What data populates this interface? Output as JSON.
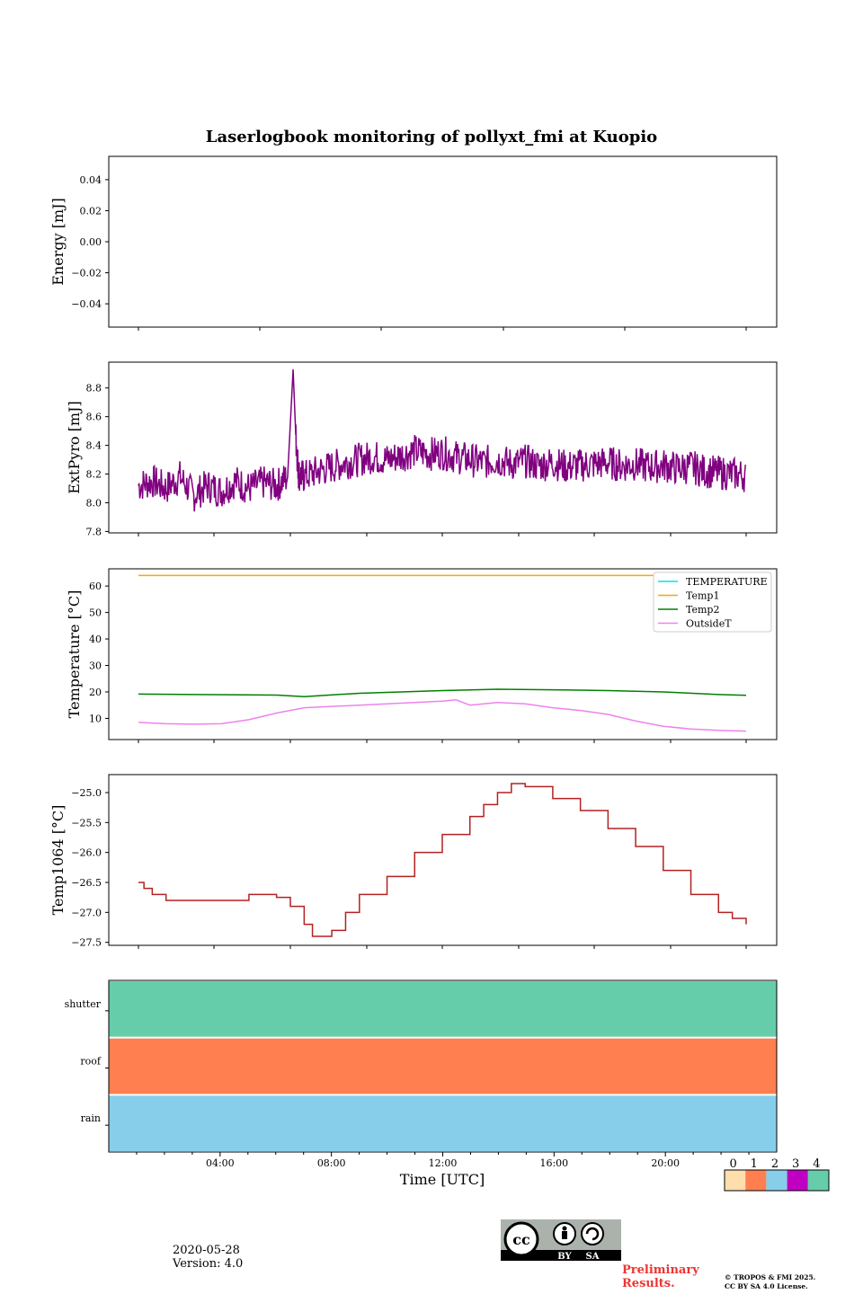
{
  "chart_data": {
    "title": "Laserlogbook monitoring of pollyxt_fmi at Kuopio",
    "xlabel": "Time [UTC]",
    "x_ticks": [
      "04:00",
      "08:00",
      "12:00",
      "16:00",
      "20:00"
    ],
    "x_range_hours": [
      0,
      24
    ],
    "panels": [
      {
        "type": "line",
        "name": "energy",
        "ylabel": "Energy [mJ]",
        "ylim": [
          -0.055,
          0.055
        ],
        "yticks": [
          "0.04",
          "0.02",
          "0.00",
          "−0.02",
          "−0.04"
        ],
        "ytick_values": [
          0.04,
          0.02,
          0.0,
          -0.02,
          -0.04
        ],
        "series": []
      },
      {
        "type": "line",
        "name": "extpyro",
        "ylabel": "ExtPyro [mJ]",
        "ylim": [
          7.79,
          8.98
        ],
        "yticks": [
          "8.8",
          "8.6",
          "8.4",
          "8.2",
          "8.0",
          "7.8"
        ],
        "ytick_values": [
          8.8,
          8.6,
          8.4,
          8.2,
          8.0,
          7.8
        ],
        "series": [
          {
            "name": "ExtPyro",
            "color": "#800080",
            "x": [
              1.0,
              1.5,
              2.0,
              2.5,
              3.0,
              3.5,
              4.0,
              4.5,
              5.0,
              5.5,
              6.0,
              6.4,
              6.6,
              6.7,
              6.8,
              7.0,
              7.5,
              8.0,
              8.5,
              9.0,
              9.5,
              10.0,
              10.5,
              11.0,
              11.5,
              12.0,
              12.5,
              13.0,
              13.5,
              14.0,
              14.5,
              15.0,
              15.5,
              16.0,
              16.5,
              17.0,
              17.5,
              18.0,
              18.5,
              19.0,
              19.5,
              20.0,
              20.5,
              21.0,
              21.5,
              22.0,
              22.5,
              23.0
            ],
            "y": [
              8.12,
              8.15,
              8.1,
              8.18,
              8.05,
              8.12,
              8.08,
              8.15,
              8.1,
              8.14,
              8.12,
              8.18,
              8.93,
              8.45,
              8.2,
              8.18,
              8.22,
              8.25,
              8.28,
              8.3,
              8.32,
              8.3,
              8.33,
              8.36,
              8.34,
              8.35,
              8.32,
              8.3,
              8.28,
              8.3,
              8.27,
              8.29,
              8.26,
              8.28,
              8.25,
              8.26,
              8.27,
              8.28,
              8.26,
              8.27,
              8.25,
              8.26,
              8.24,
              8.25,
              8.22,
              8.21,
              8.2,
              8.19
            ],
            "noise": 0.12
          }
        ]
      },
      {
        "type": "line",
        "name": "temperature",
        "ylabel": "Temperature [°C]",
        "ylim": [
          2,
          66.5
        ],
        "yticks": [
          "60",
          "50",
          "40",
          "30",
          "20",
          "10"
        ],
        "ytick_values": [
          60,
          50,
          40,
          30,
          20,
          10
        ],
        "legend": "top-right",
        "series": [
          {
            "name": "TEMPERATURE",
            "color": "#00e5e5",
            "x": [],
            "y": []
          },
          {
            "name": "Temp1",
            "color": "#ffa500",
            "x": [
              1,
              23
            ],
            "y": [
              64,
              64
            ]
          },
          {
            "name": "Temp2",
            "color": "#008000",
            "x": [
              1,
              3,
              6,
              7,
              9,
              12,
              14,
              16,
              18,
              20,
              22,
              23
            ],
            "y": [
              19.2,
              19.0,
              18.8,
              18.2,
              19.5,
              20.5,
              21.0,
              20.8,
              20.5,
              20.0,
              19.0,
              18.7
            ]
          },
          {
            "name": "OutsideT",
            "color": "#ee82ee",
            "x": [
              1,
              2,
              3,
              4,
              5,
              6,
              7,
              8,
              9,
              10,
              11,
              12,
              12.5,
              13,
              14,
              15,
              16,
              17,
              18,
              19,
              20,
              21,
              22,
              23
            ],
            "y": [
              8.5,
              8.0,
              7.8,
              8.0,
              9.5,
              12.0,
              14.0,
              14.5,
              15.0,
              15.5,
              16.0,
              16.5,
              17.0,
              15.0,
              16.0,
              15.5,
              14.0,
              13.0,
              11.5,
              9.0,
              7.0,
              6.0,
              5.5,
              5.2
            ]
          }
        ]
      },
      {
        "type": "line",
        "name": "temp1064",
        "ylabel": "Temp1064 [°C]",
        "ylim": [
          -27.55,
          -24.7
        ],
        "yticks": [
          "−25.0",
          "−25.5",
          "−26.0",
          "−26.5",
          "−27.0",
          "−27.5"
        ],
        "ytick_values": [
          -25.0,
          -25.5,
          -26.0,
          -26.5,
          -27.0,
          -27.5
        ],
        "series": [
          {
            "name": "Temp1064",
            "color": "#b22222",
            "x": [
              1.0,
              1.2,
              1.5,
              2.0,
              3.0,
              4.0,
              5.0,
              6.0,
              6.5,
              7.0,
              7.3,
              7.8,
              8.0,
              8.5,
              9.0,
              10.0,
              11.0,
              12.0,
              13.0,
              13.5,
              14.0,
              14.5,
              15.0,
              16.0,
              17.0,
              18.0,
              19.0,
              20.0,
              21.0,
              22.0,
              22.5,
              23.0
            ],
            "y": [
              -26.5,
              -26.6,
              -26.7,
              -26.8,
              -26.8,
              -26.8,
              -26.7,
              -26.75,
              -26.9,
              -27.2,
              -27.4,
              -27.4,
              -27.3,
              -27.0,
              -26.7,
              -26.4,
              -26.0,
              -25.7,
              -25.4,
              -25.2,
              -25.0,
              -24.85,
              -24.9,
              -25.1,
              -25.3,
              -25.6,
              -25.9,
              -26.3,
              -26.7,
              -27.0,
              -27.1,
              -27.2
            ]
          }
        ]
      },
      {
        "type": "heatmap",
        "name": "status",
        "rows": [
          {
            "label": "shutter",
            "value": 4
          },
          {
            "label": "roof",
            "value": 1
          },
          {
            "label": "rain",
            "value": 2
          }
        ]
      }
    ],
    "colorbar": {
      "labels": [
        "0",
        "1",
        "2",
        "3",
        "4"
      ],
      "colors": [
        "#ffdead",
        "#ff7f50",
        "#87ceeb",
        "#c000c0",
        "#66cdaa"
      ]
    }
  },
  "footer": {
    "date": "2020-05-28",
    "version": "Version: 4.0",
    "preliminary_line1": "Preliminary",
    "preliminary_line2": "Results.",
    "copyright_line1": "© TROPOS & FMI 2025.",
    "copyright_line2": "CC BY SA 4.0 License.",
    "cc_by": "BY",
    "cc_sa": "SA",
    "cc_logo": "cc"
  }
}
